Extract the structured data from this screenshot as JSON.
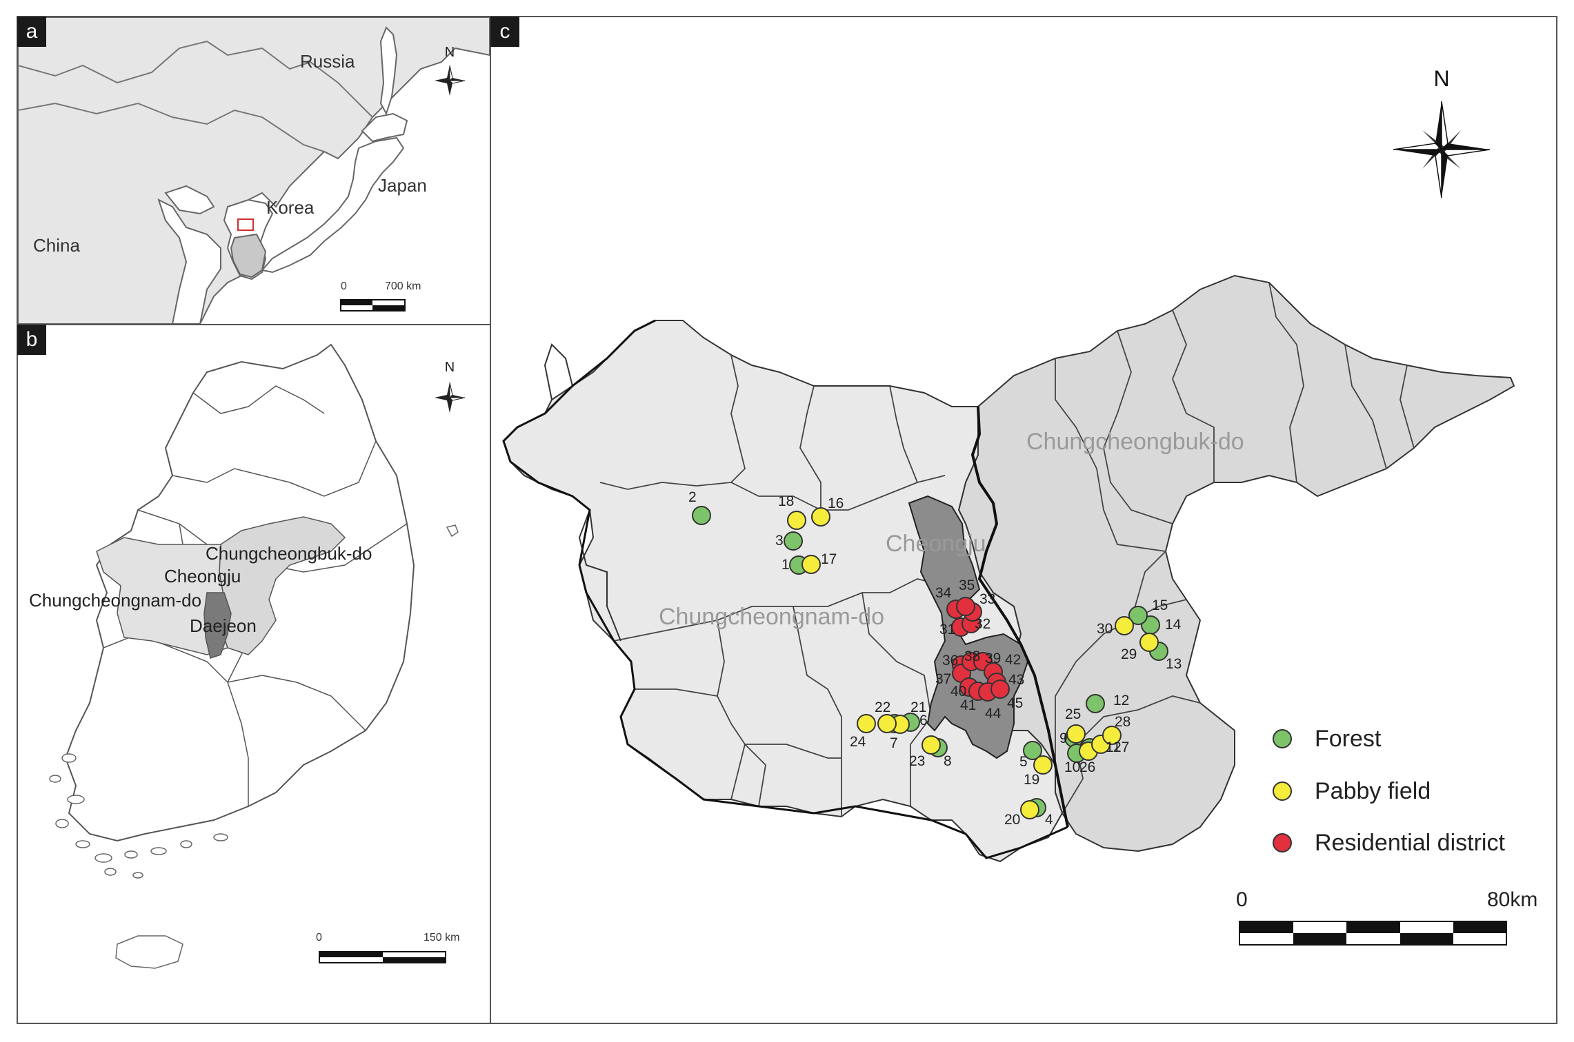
{
  "panels": {
    "a": {
      "label": "a",
      "places": [
        "Russia",
        "Japan",
        "Korea",
        "China"
      ],
      "north": "N",
      "scale": {
        "start": "0",
        "end": "700 km"
      }
    },
    "b": {
      "label": "b",
      "places": [
        "Chungcheongbuk-do",
        "Cheongju",
        "Chungcheongnam-do",
        "Daejeon"
      ],
      "north": "N",
      "scale": {
        "start": "0",
        "end": "150 km"
      }
    },
    "c": {
      "label": "c",
      "regions": [
        "Chungcheongbuk-do",
        "Cheongju",
        "Chungcheongnam-do"
      ],
      "north": "N",
      "scale": {
        "start": "0",
        "end": "80km"
      },
      "legend": [
        {
          "label": "Forest",
          "color": "#7dc36a"
        },
        {
          "label": "Pabby field",
          "color": "#f6ec3c"
        },
        {
          "label": "Residential district",
          "color": "#e2303f"
        }
      ]
    }
  },
  "sites": [
    {
      "id": "1",
      "type": "forest"
    },
    {
      "id": "2",
      "type": "forest"
    },
    {
      "id": "3",
      "type": "forest"
    },
    {
      "id": "4",
      "type": "forest"
    },
    {
      "id": "5",
      "type": "forest"
    },
    {
      "id": "6",
      "type": "forest"
    },
    {
      "id": "7",
      "type": "forest"
    },
    {
      "id": "8",
      "type": "forest"
    },
    {
      "id": "9",
      "type": "forest"
    },
    {
      "id": "10",
      "type": "forest"
    },
    {
      "id": "11",
      "type": "forest"
    },
    {
      "id": "12",
      "type": "forest"
    },
    {
      "id": "13",
      "type": "forest"
    },
    {
      "id": "14",
      "type": "forest"
    },
    {
      "id": "15",
      "type": "forest"
    },
    {
      "id": "16",
      "type": "paddy"
    },
    {
      "id": "17",
      "type": "paddy"
    },
    {
      "id": "18",
      "type": "paddy"
    },
    {
      "id": "19",
      "type": "paddy"
    },
    {
      "id": "20",
      "type": "paddy"
    },
    {
      "id": "21",
      "type": "paddy"
    },
    {
      "id": "22",
      "type": "paddy"
    },
    {
      "id": "23",
      "type": "paddy"
    },
    {
      "id": "24",
      "type": "paddy"
    },
    {
      "id": "25",
      "type": "paddy"
    },
    {
      "id": "26",
      "type": "paddy"
    },
    {
      "id": "27",
      "type": "paddy"
    },
    {
      "id": "28",
      "type": "paddy"
    },
    {
      "id": "29",
      "type": "paddy"
    },
    {
      "id": "30",
      "type": "paddy"
    },
    {
      "id": "31",
      "type": "residential"
    },
    {
      "id": "32",
      "type": "residential"
    },
    {
      "id": "33",
      "type": "residential"
    },
    {
      "id": "34",
      "type": "residential"
    },
    {
      "id": "35",
      "type": "residential"
    },
    {
      "id": "36",
      "type": "residential"
    },
    {
      "id": "37",
      "type": "residential"
    },
    {
      "id": "38",
      "type": "residential"
    },
    {
      "id": "39",
      "type": "residential"
    },
    {
      "id": "40",
      "type": "residential"
    },
    {
      "id": "41",
      "type": "residential"
    },
    {
      "id": "42",
      "type": "residential"
    },
    {
      "id": "43",
      "type": "residential"
    },
    {
      "id": "44",
      "type": "residential"
    },
    {
      "id": "45",
      "type": "residential"
    }
  ],
  "colors": {
    "forest": "#7dc36a",
    "paddy": "#f6ec3c",
    "residential": "#e2303f",
    "land": "#ececec",
    "province": "#d8d8d8",
    "city": "#8a8a8a"
  }
}
